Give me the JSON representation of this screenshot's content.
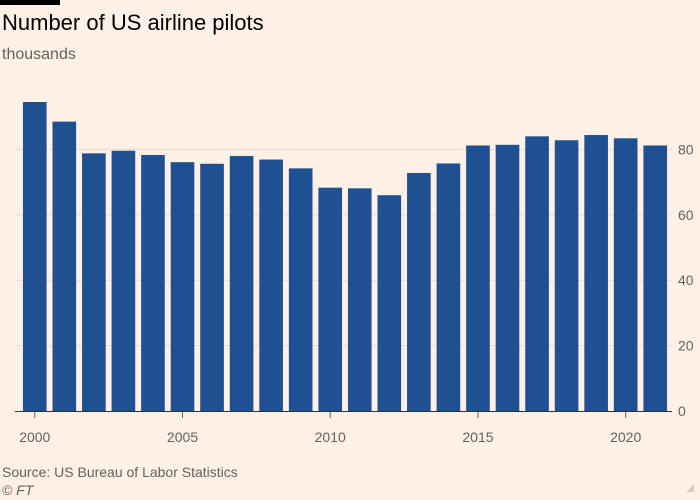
{
  "header": {
    "title": "Number of US airline pilots",
    "subtitle": "thousands"
  },
  "footer": {
    "source": "Source: US Bureau of Labor Statistics",
    "credit": "© FT"
  },
  "colors": {
    "background": "#fff1e5",
    "bar": "#1f5091",
    "gridline": "#e6d9ce",
    "text": "#66605c"
  },
  "chart_data": {
    "type": "bar",
    "title": "Number of US airline pilots",
    "subtitle": "thousands",
    "xlabel": "",
    "ylabel": "thousands",
    "categories": [
      2000,
      2001,
      2002,
      2003,
      2004,
      2005,
      2006,
      2007,
      2008,
      2009,
      2010,
      2011,
      2012,
      2013,
      2014,
      2015,
      2016,
      2017,
      2018,
      2019,
      2020,
      2021
    ],
    "values": [
      94.5,
      88.5,
      78.8,
      79.6,
      78.3,
      76.1,
      75.6,
      78.0,
      76.9,
      74.2,
      68.3,
      68.1,
      66.0,
      72.8,
      75.7,
      81.2,
      81.4,
      84.0,
      82.8,
      84.4,
      83.4,
      81.2
    ],
    "x_tick_labels": [
      "2000",
      "2005",
      "2010",
      "2015",
      "2020"
    ],
    "x_tick_values": [
      2000,
      2005,
      2010,
      2015,
      2020
    ],
    "y_ticks": [
      0,
      20,
      40,
      60,
      80
    ],
    "ylim": [
      0,
      94.5
    ],
    "y_axis_side": "right",
    "grid": true
  }
}
